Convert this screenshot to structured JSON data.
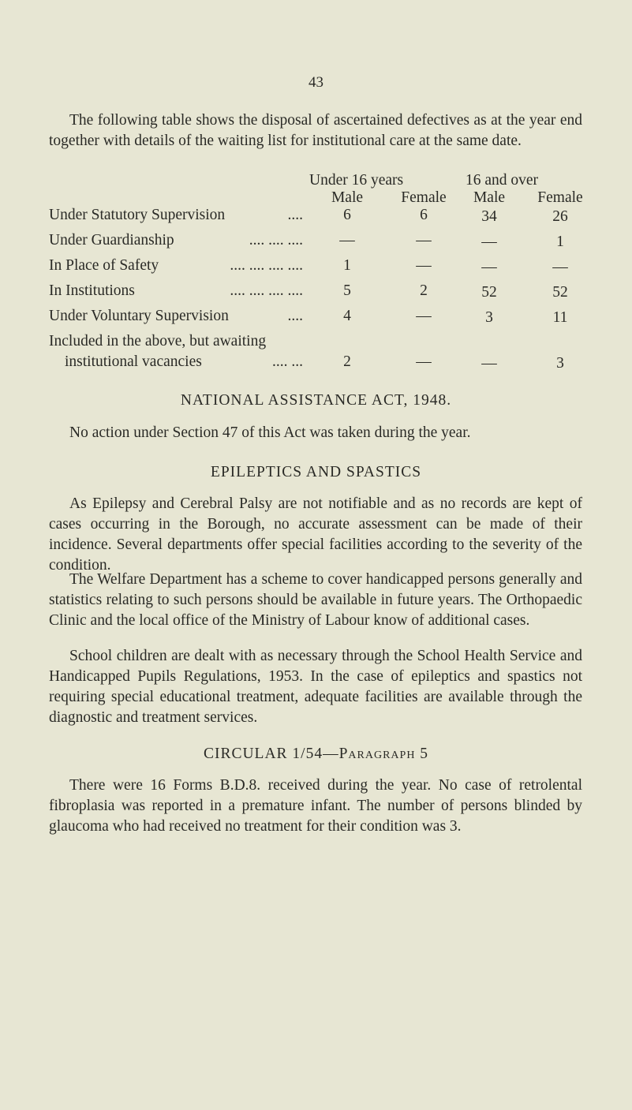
{
  "page_number": "43",
  "intro": "The following table shows the disposal of ascertained defectives as at the year end together with details of the waiting list for institutional care at the same date.",
  "table": {
    "group_headers": [
      "Under 16 years",
      "16 and over"
    ],
    "col_headers": [
      "Male",
      "Female",
      "Male",
      "Female"
    ],
    "rows": [
      {
        "label": "Under Statutory Supervision",
        "dots": "....",
        "values": [
          "6",
          "6",
          "34",
          "26"
        ]
      },
      {
        "label": "Under Guardianship",
        "dots": ".... .... ....",
        "values": [
          "—",
          "—",
          "—",
          "1"
        ]
      },
      {
        "label": "In Place of Safety",
        "dots": ".... .... .... ....",
        "values": [
          "1",
          "—",
          "—",
          "—"
        ]
      },
      {
        "label": "In Institutions",
        "dots": ".... .... .... ....",
        "values": [
          "5",
          "2",
          "52",
          "52"
        ]
      },
      {
        "label": "Under Voluntary Supervision",
        "dots": "....",
        "values": [
          "4",
          "—",
          "3",
          "11"
        ]
      },
      {
        "label": "Included in the above, but awaiting",
        "label2": "institutional vacancies",
        "dots": ".... ...",
        "values": [
          "2",
          "—",
          "—",
          "3"
        ]
      }
    ]
  },
  "section1": {
    "heading": "NATIONAL ASSISTANCE ACT, 1948.",
    "text": "No action under Section 47 of this Act was taken during the year."
  },
  "section2": {
    "heading": "EPILEPTICS AND SPASTICS",
    "paragraphs": [
      "As Epilepsy and Cerebral Palsy are not notifiable and as no records are kept of cases occurring in the Borough, no accurate assessment can be made of their incidence. Several departments offer special facilities according to the severity of the condition.",
      "The Welfare Department has a scheme to cover handicapped persons generally and statistics relating to such persons should be available in future years. The Orthopaedic Clinic and the local office of the Ministry of Labour know of additional cases.",
      "School children are dealt with as necessary through the School Health Service and Handicapped Pupils Regulations, 1953. In the case of epileptics and spastics not requiring special educational treatment, adequate facilities are available through the diagnostic and treatment services."
    ]
  },
  "section3": {
    "heading_main": "CIRCULAR 1/54—",
    "heading_sub": "Paragraph 5",
    "text": "There were 16 Forms B.D.8. received during the year. No case of retrolental fibroplasia was reported in a premature infant. The number of persons blinded by glaucoma who had received no treatment for their condition was 3."
  }
}
